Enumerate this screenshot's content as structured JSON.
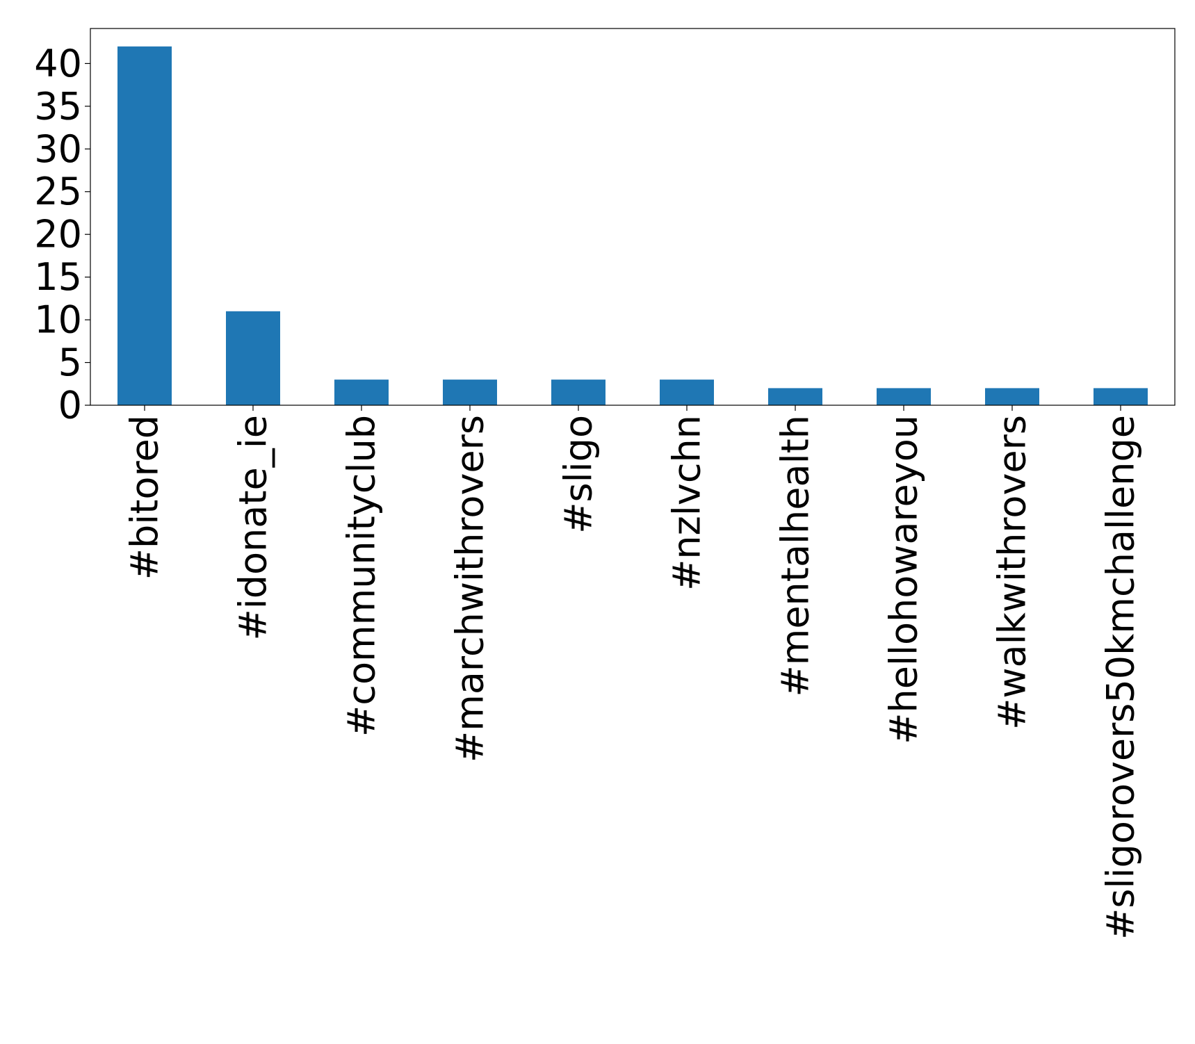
{
  "chart_data": {
    "type": "bar",
    "title": "",
    "xlabel": "",
    "ylabel": "",
    "categories": [
      "#bitored",
      "#idonate_ie",
      "#communityclub",
      "#marchwithrovers",
      "#sligo",
      "#nzlvchn",
      "#mentalhealth",
      "#hellohowareyou",
      "#walkwithrovers",
      "#sligorovers50kmchallenge"
    ],
    "values": [
      42,
      11,
      3,
      3,
      3,
      3,
      2,
      2,
      2,
      2
    ],
    "ylim": [
      0,
      44.1
    ],
    "yticks": [
      0,
      5,
      10,
      15,
      20,
      25,
      30,
      35,
      40
    ],
    "bar_color": "#1f77b4",
    "grid": false,
    "legend": "none"
  }
}
